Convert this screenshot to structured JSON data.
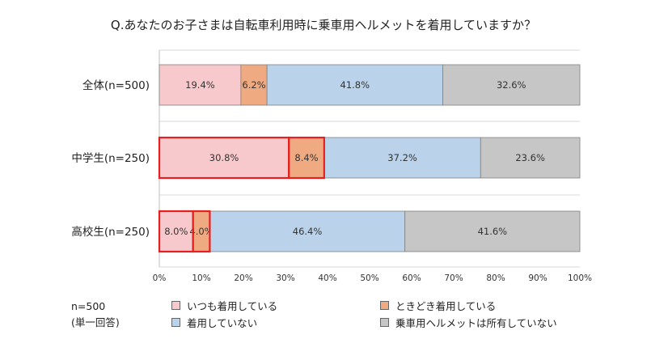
{
  "chart_data": {
    "type": "bar",
    "orientation": "horizontal",
    "stacked": true,
    "title": "Q.あなたのお子さまは自転車利用時に乗車用ヘルメットを着用していますか？",
    "categories": [
      "全体(n=500)",
      "中学生(n=250)",
      "高校生(n=250)"
    ],
    "series": [
      {
        "name": "いつも着用している",
        "values": [
          19.4,
          30.8,
          8.0
        ],
        "labels": [
          "19.4%",
          "30.8%",
          "8.0%"
        ],
        "color": "#f8c9cc"
      },
      {
        "name": "ときどき着用している",
        "values": [
          6.2,
          8.4,
          4.0
        ],
        "labels": [
          "6.2%",
          "8.4%",
          "4.0%"
        ],
        "color": "#f0aa82"
      },
      {
        "name": "着用していない",
        "values": [
          41.8,
          37.2,
          46.4
        ],
        "labels": [
          "41.8%",
          "37.2%",
          "46.4%"
        ],
        "color": "#bad3ea"
      },
      {
        "name": "乗車用ヘルメットは所有していない",
        "values": [
          32.6,
          23.6,
          41.6
        ],
        "labels": [
          "32.6%",
          "23.6%",
          "41.6%"
        ],
        "color": "#c6c6c6"
      }
    ],
    "xlim": [
      0,
      100
    ],
    "xticks": [
      "0%",
      "10%",
      "20%",
      "30%",
      "40%",
      "50%",
      "60%",
      "70%",
      "80%",
      "90%",
      "100%"
    ],
    "grid": true,
    "highlights": [
      {
        "category_index": 1,
        "series_indices": [
          0,
          1
        ]
      },
      {
        "category_index": 2,
        "series_indices": [
          0,
          1
        ]
      }
    ],
    "highlight_color": "#e62020",
    "legend_position": "bottom"
  },
  "note": {
    "sample": "n=500",
    "answer_type": "(単一回答)"
  }
}
